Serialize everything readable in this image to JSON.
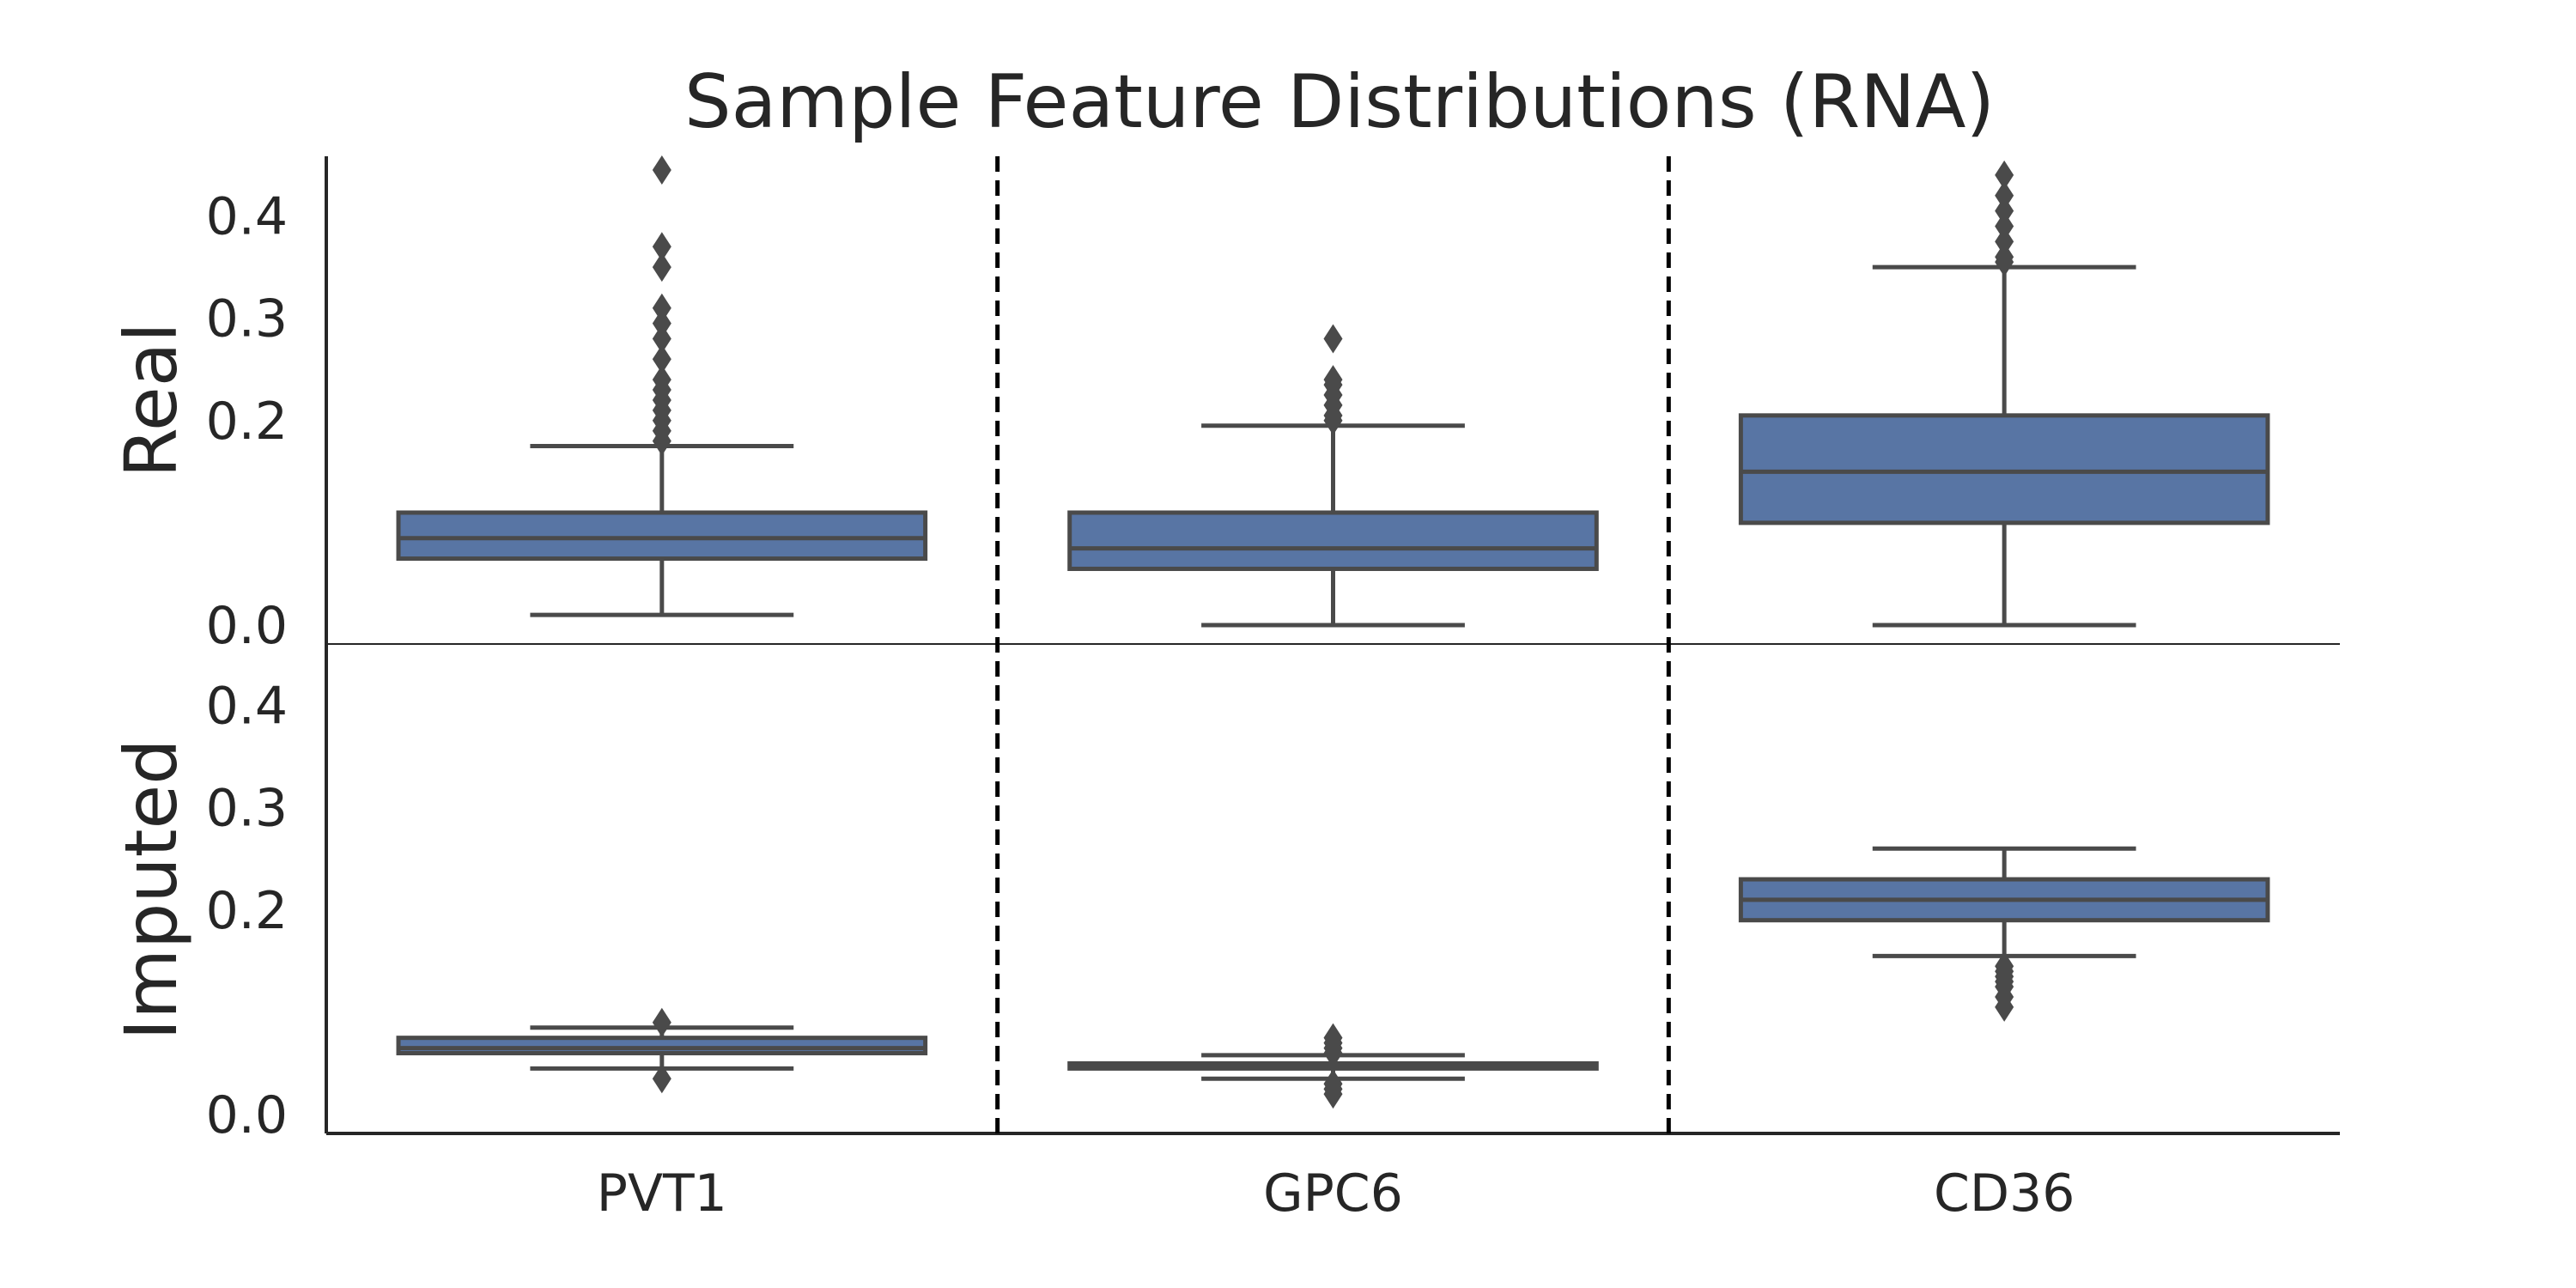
{
  "title": "Sample Feature Distributions (RNA)",
  "chart_data": {
    "type": "box",
    "title": "Sample Feature Distributions (RNA)",
    "categories": [
      "PVT1",
      "GPC6",
      "CD36"
    ],
    "ylim": [
      0.0,
      0.45
    ],
    "yticks": [
      "0.0",
      "0.2",
      "0.3",
      "0.4"
    ],
    "grid": false,
    "colors": {
      "box_fill": "#5875a4",
      "box_edge": "#4a4a4a",
      "axis": "#262626",
      "separator": "#000000"
    },
    "panels": [
      {
        "name": "Real",
        "boxes": [
          {
            "category": "PVT1",
            "whislo": 0.01,
            "q1": 0.065,
            "median": 0.085,
            "q3": 0.11,
            "whishi": 0.175,
            "fliers": [
              0.18,
              0.19,
              0.2,
              0.21,
              0.22,
              0.23,
              0.24,
              0.26,
              0.28,
              0.295,
              0.31,
              0.35,
              0.37,
              0.445
            ]
          },
          {
            "category": "GPC6",
            "whislo": 0.0,
            "q1": 0.055,
            "median": 0.075,
            "q3": 0.11,
            "whishi": 0.195,
            "fliers": [
              0.2,
              0.205,
              0.215,
              0.225,
              0.235,
              0.24,
              0.28
            ]
          },
          {
            "category": "CD36",
            "whislo": 0.0,
            "q1": 0.1,
            "median": 0.15,
            "q3": 0.205,
            "whishi": 0.35,
            "fliers": [
              0.355,
              0.36,
              0.375,
              0.39,
              0.405,
              0.42,
              0.44
            ]
          }
        ]
      },
      {
        "name": "Imputed",
        "boxes": [
          {
            "category": "PVT1",
            "whislo": 0.045,
            "q1": 0.06,
            "median": 0.065,
            "q3": 0.075,
            "whishi": 0.085,
            "fliers": [
              0.035,
              0.09
            ]
          },
          {
            "category": "GPC6",
            "whislo": 0.035,
            "q1": 0.045,
            "median": 0.047,
            "q3": 0.05,
            "whishi": 0.058,
            "fliers": [
              0.02,
              0.025,
              0.03,
              0.06,
              0.065,
              0.07,
              0.075
            ]
          },
          {
            "category": "CD36",
            "whislo": 0.155,
            "q1": 0.19,
            "median": 0.21,
            "q3": 0.23,
            "whishi": 0.26,
            "fliers": [
              0.105,
              0.115,
              0.125,
              0.13,
              0.135,
              0.14,
              0.145
            ]
          }
        ]
      }
    ]
  }
}
